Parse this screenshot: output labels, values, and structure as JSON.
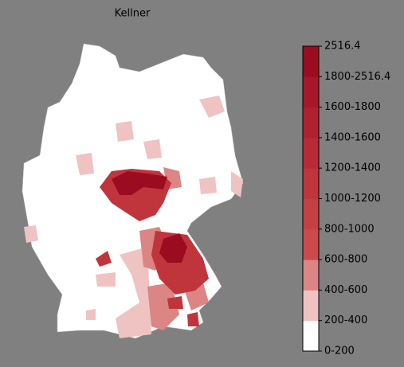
{
  "title": "Kellner",
  "colorbar": {
    "labels": [
      "0-200",
      "200-400",
      "400-600",
      "600-800",
      "800-1000",
      "1000-1200",
      "1200-1400",
      "1400-1600",
      "1600-1800",
      "1800-2516.4",
      "2516.4"
    ],
    "colors": [
      "#ffffff",
      "#f0c3c3",
      "#db8585",
      "#cc4a4a",
      "#c63f43",
      "#c0343c",
      "#b92a36",
      "#b1202f",
      "#a81728",
      "#9c0c20"
    ]
  }
}
